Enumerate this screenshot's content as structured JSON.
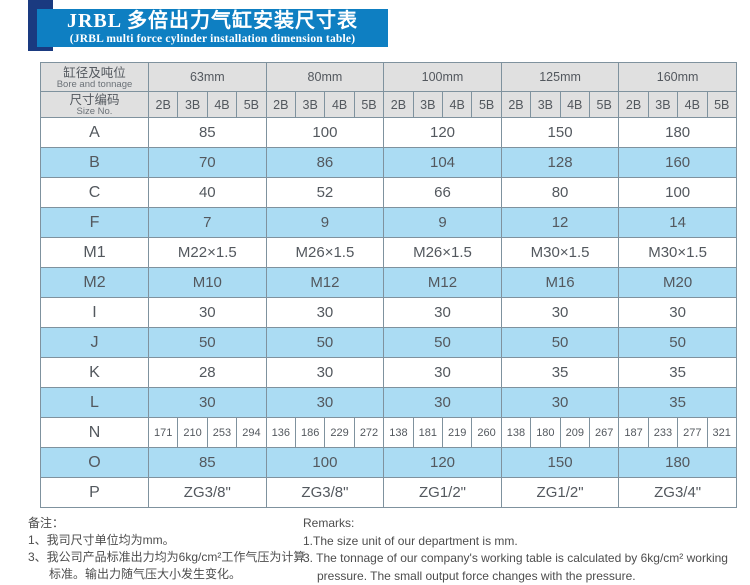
{
  "title": {
    "zh": "JRBL 多倍出力气缸安装尺寸表",
    "en": "(JRBL multi force cylinder installation dimension table)"
  },
  "colors": {
    "banner_blue": "#0e7fc2",
    "ribbon_navy": "#1a3a80",
    "header_gray": "#e0e0e0",
    "row_blue": "#abdcf3",
    "border_gray": "#7f929e"
  },
  "table": {
    "corner": {
      "row1_zh": "缸径及吨位",
      "row1_en": "Bore and tonnage",
      "row2_zh": "尺寸编码",
      "row2_en": "Size No."
    },
    "sizes": [
      "63mm",
      "80mm",
      "100mm",
      "125mm",
      "160mm"
    ],
    "sub_columns": [
      "2B",
      "3B",
      "4B",
      "5B"
    ],
    "rows": [
      {
        "label": "A",
        "type": "span",
        "blue": false,
        "values": [
          "85",
          "100",
          "120",
          "150",
          "180"
        ]
      },
      {
        "label": "B",
        "type": "span",
        "blue": true,
        "values": [
          "70",
          "86",
          "104",
          "128",
          "160"
        ]
      },
      {
        "label": "C",
        "type": "span",
        "blue": false,
        "values": [
          "40",
          "52",
          "66",
          "80",
          "100"
        ]
      },
      {
        "label": "F",
        "type": "span",
        "blue": true,
        "values": [
          "7",
          "9",
          "9",
          "12",
          "14"
        ]
      },
      {
        "label": "M1",
        "type": "span",
        "blue": false,
        "values": [
          "M22×1.5",
          "M26×1.5",
          "M26×1.5",
          "M30×1.5",
          "M30×1.5"
        ]
      },
      {
        "label": "M2",
        "type": "span",
        "blue": true,
        "values": [
          "M10",
          "M12",
          "M12",
          "M16",
          "M20"
        ]
      },
      {
        "label": "I",
        "type": "span",
        "blue": false,
        "values": [
          "30",
          "30",
          "30",
          "30",
          "30"
        ]
      },
      {
        "label": "J",
        "type": "span",
        "blue": true,
        "values": [
          "50",
          "50",
          "50",
          "50",
          "50"
        ]
      },
      {
        "label": "K",
        "type": "span",
        "blue": false,
        "values": [
          "28",
          "30",
          "30",
          "35",
          "35"
        ]
      },
      {
        "label": "L",
        "type": "span",
        "blue": true,
        "values": [
          "30",
          "30",
          "30",
          "30",
          "35"
        ]
      },
      {
        "label": "N",
        "type": "each",
        "blue": false,
        "values": [
          [
            "171",
            "210",
            "253",
            "294"
          ],
          [
            "136",
            "186",
            "229",
            "272"
          ],
          [
            "138",
            "181",
            "219",
            "260"
          ],
          [
            "138",
            "180",
            "209",
            "267"
          ],
          [
            "187",
            "233",
            "277",
            "321"
          ]
        ]
      },
      {
        "label": "O",
        "type": "span",
        "blue": true,
        "values": [
          "85",
          "100",
          "120",
          "150",
          "180"
        ]
      },
      {
        "label": "P",
        "type": "span",
        "blue": false,
        "values": [
          "ZG3/8\"",
          "ZG3/8\"",
          "ZG1/2\"",
          "ZG1/2\"",
          "ZG3/4\""
        ]
      }
    ]
  },
  "notes": {
    "zh": {
      "heading": "备注：",
      "item1": "1、我司尺寸单位均为mm。",
      "item3": "3、我公司产品标准出力均为6kg/cm²工作气压为计算标准。输出力随气压大小发生变化。"
    },
    "en": {
      "heading": "Remarks:",
      "item1": "1.The size unit of our department is mm.",
      "item3": "3. The tonnage of our company's working table is calculated by 6kg/cm² working pressure. The small output force changes with the pressure."
    }
  }
}
